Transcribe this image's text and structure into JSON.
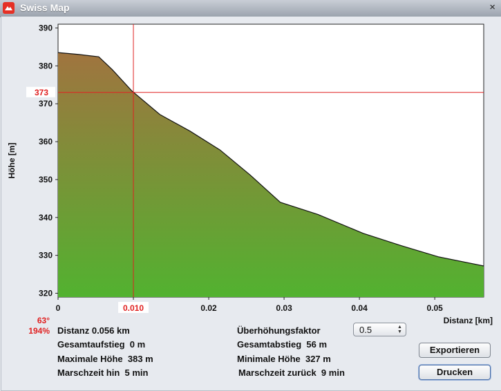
{
  "window": {
    "title": "Swiss Map",
    "app_icon": "swiss-map-app-icon",
    "close_icon": "close-icon",
    "close_glyph": "×"
  },
  "chart_data": {
    "type": "area",
    "ylabel": "Höhe [m]",
    "xlabel": "Distanz [km]",
    "ylim": [
      319,
      391
    ],
    "xlim": [
      0,
      0.0565
    ],
    "yticks": [
      320,
      330,
      340,
      350,
      360,
      370,
      380,
      390
    ],
    "xticks": [
      0,
      0.01,
      0.02,
      0.03,
      0.04,
      0.05
    ],
    "xtick_labels": [
      "0",
      "0.010",
      "0.02",
      "0.03",
      "0.04",
      "0.05"
    ],
    "x": [
      0,
      0.0028,
      0.0054,
      0.0072,
      0.0098,
      0.0135,
      0.0175,
      0.0215,
      0.0255,
      0.0295,
      0.0345,
      0.0405,
      0.0455,
      0.0505,
      0.0565
    ],
    "y": [
      383.5,
      383.0,
      382.4,
      379,
      373.4,
      367.2,
      362.8,
      357.8,
      351.2,
      344.0,
      340.8,
      335.8,
      332.6,
      329.6,
      327.2
    ],
    "cursor": {
      "x": 0.01,
      "y": 373,
      "x_label": "0.010",
      "y_label": "373",
      "color": "#e02020"
    },
    "fill_top_color": "#a0743f",
    "fill_bottom_color": "#52b230",
    "line_color": "#111111",
    "grid": false
  },
  "slope": {
    "angle": "63°",
    "percent": "194%"
  },
  "stats": {
    "distanz": "Distanz 0.056 km",
    "gesamtaufstieg": "Gesamtaufstieg  0 m",
    "maximale_hoehe": "Maximale Höhe  383 m",
    "marschzeit_hin": "Marschzeit hin  5 min",
    "ueberhoehungsfaktor_label": "Überhöhungsfaktor",
    "gesamtabstieg": "Gesamtabstieg  56 m",
    "minimale_hoehe": "Minimale Höhe  327 m",
    "marschzeit_zurueck": "Marschzeit zurück  9 min"
  },
  "controls": {
    "faktor_value": "0.5",
    "spinner_icon": "stepper-arrows-icon",
    "export_label": "Exportieren",
    "print_label": "Drucken"
  }
}
